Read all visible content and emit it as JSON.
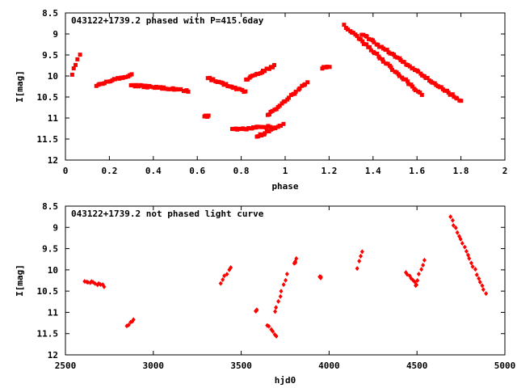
{
  "chart_data": [
    {
      "type": "scatter",
      "title": "043122+1739.2 phased with P=415.6day",
      "xlabel": "phase",
      "ylabel": "I[mag]",
      "xlim": [
        0,
        2
      ],
      "ylim": [
        8.5,
        12
      ],
      "y_inverted": true,
      "x_ticks": [
        "0",
        "0.2",
        "0.4",
        "0.6",
        "0.8",
        "1",
        "1.2",
        "1.4",
        "1.6",
        "1.8",
        "2"
      ],
      "y_ticks": [
        "8.5",
        "9",
        "9.5",
        "10",
        "10.5",
        "11",
        "11.5",
        "12"
      ],
      "grid": false,
      "marker_color": "#ff0000",
      "marker": "filled-square",
      "segments": [
        {
          "x": [
            0.03,
            0.065
          ],
          "y": [
            9.95,
            9.5
          ]
        },
        {
          "x": [
            0.14,
            0.3
          ],
          "y": [
            10.22,
            9.97
          ]
        },
        {
          "x": [
            0.3,
            0.56
          ],
          "y": [
            10.22,
            10.35
          ]
        },
        {
          "x": [
            0.635,
            0.65
          ],
          "y": [
            10.95,
            10.95
          ]
        },
        {
          "x": [
            0.65,
            0.82
          ],
          "y": [
            10.05,
            10.38
          ]
        },
        {
          "x": [
            0.82,
            0.95
          ],
          "y": [
            10.1,
            9.75
          ]
        },
        {
          "x": [
            0.76,
            0.93
          ],
          "y": [
            11.28,
            11.2
          ]
        },
        {
          "x": [
            0.87,
            0.99
          ],
          "y": [
            11.45,
            11.15
          ]
        },
        {
          "x": [
            0.92,
            1.1
          ],
          "y": [
            10.95,
            10.15
          ]
        },
        {
          "x": [
            1.17,
            1.2
          ],
          "y": [
            9.82,
            9.78
          ]
        },
        {
          "x": [
            1.27,
            1.62
          ],
          "y": [
            8.8,
            10.45
          ]
        },
        {
          "x": [
            1.35,
            1.8
          ],
          "y": [
            9.0,
            10.6
          ]
        }
      ]
    },
    {
      "type": "scatter",
      "title": "043122+1739.2 not phased light curve",
      "xlabel": "hjd0",
      "ylabel": "I[mag]",
      "xlim": [
        2500,
        5000
      ],
      "ylim": [
        8.5,
        12
      ],
      "y_inverted": true,
      "x_ticks": [
        "2500",
        "3000",
        "3500",
        "4000",
        "4500",
        "5000"
      ],
      "y_ticks": [
        "8.5",
        "9",
        "9.5",
        "10",
        "10.5",
        "11",
        "11.5",
        "12"
      ],
      "grid": false,
      "marker_color": "#ff0000",
      "marker": "filled-diamond",
      "segments": [
        {
          "x": [
            2610,
            2720
          ],
          "y": [
            10.25,
            10.38
          ]
        },
        {
          "x": [
            2850,
            2890
          ],
          "y": [
            11.32,
            11.18
          ]
        },
        {
          "x": [
            3385,
            3440
          ],
          "y": [
            10.3,
            9.95
          ]
        },
        {
          "x": [
            3585,
            3590
          ],
          "y": [
            10.95,
            10.95
          ]
        },
        {
          "x": [
            3650,
            3700
          ],
          "y": [
            11.3,
            11.55
          ]
        },
        {
          "x": [
            3690,
            3760
          ],
          "y": [
            11.0,
            10.1
          ]
        },
        {
          "x": [
            3800,
            3815
          ],
          "y": [
            9.85,
            9.75
          ]
        },
        {
          "x": [
            3945,
            3955
          ],
          "y": [
            10.15,
            10.18
          ]
        },
        {
          "x": [
            4160,
            4185
          ],
          "y": [
            9.95,
            9.55
          ]
        },
        {
          "x": [
            4435,
            4500
          ],
          "y": [
            10.05,
            10.35
          ]
        },
        {
          "x": [
            4490,
            4545
          ],
          "y": [
            10.35,
            9.75
          ]
        },
        {
          "x": [
            4690,
            4890
          ],
          "y": [
            8.75,
            10.55
          ]
        }
      ]
    }
  ]
}
